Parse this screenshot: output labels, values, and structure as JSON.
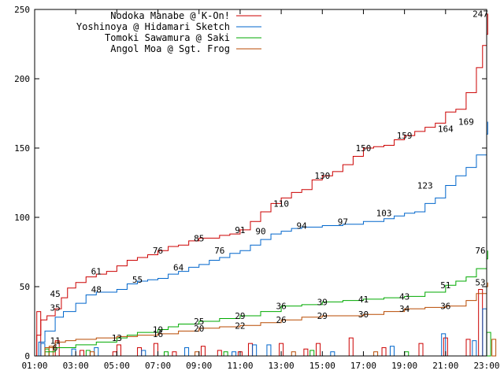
{
  "chart_data": {
    "type": "line",
    "title": "",
    "xlabel": "",
    "ylabel": "",
    "xlim": [
      1,
      23
    ],
    "ylim": [
      0,
      250
    ],
    "yticks": [
      0,
      50,
      100,
      150,
      200,
      250
    ],
    "xticks": [
      {
        "x": 1,
        "label": "01:00"
      },
      {
        "x": 3,
        "label": "03:00"
      },
      {
        "x": 5,
        "label": "05:00"
      },
      {
        "x": 7,
        "label": "07:00"
      },
      {
        "x": 9,
        "label": "09:00"
      },
      {
        "x": 11,
        "label": "11:00"
      },
      {
        "x": 13,
        "label": "13:00"
      },
      {
        "x": 15,
        "label": "15:00"
      },
      {
        "x": 17,
        "label": "17:00"
      },
      {
        "x": 19,
        "label": "19:00"
      },
      {
        "x": 21,
        "label": "21:00"
      },
      {
        "x": 23,
        "label": "23:00"
      }
    ],
    "grid": false,
    "legend_position": "top-left",
    "series": [
      {
        "name": "Nodoka Manabe @ K-On!",
        "color": "#cc0000",
        "points": [
          [
            1,
            0
          ],
          [
            1.1,
            15
          ],
          [
            1.3,
            26
          ],
          [
            1.6,
            29
          ],
          [
            2,
            34
          ],
          [
            2.3,
            42
          ],
          [
            2.6,
            49
          ],
          [
            3,
            53
          ],
          [
            3.5,
            57
          ],
          [
            4,
            59
          ],
          [
            4.5,
            61
          ],
          [
            5,
            65
          ],
          [
            5.5,
            69
          ],
          [
            6,
            71
          ],
          [
            6.5,
            73
          ],
          [
            7,
            76
          ],
          [
            7.5,
            79
          ],
          [
            8,
            80
          ],
          [
            8.5,
            83
          ],
          [
            9,
            85
          ],
          [
            9.5,
            85
          ],
          [
            10,
            87
          ],
          [
            10.5,
            88
          ],
          [
            11,
            91
          ],
          [
            11.5,
            97
          ],
          [
            12,
            104
          ],
          [
            12.5,
            110
          ],
          [
            13,
            114
          ],
          [
            13.5,
            118
          ],
          [
            14,
            120
          ],
          [
            14.5,
            127
          ],
          [
            15,
            130
          ],
          [
            15.5,
            133
          ],
          [
            16,
            138
          ],
          [
            16.5,
            144
          ],
          [
            17,
            150
          ],
          [
            17.5,
            151
          ],
          [
            18,
            152
          ],
          [
            18.5,
            156
          ],
          [
            19,
            159
          ],
          [
            19.5,
            162
          ],
          [
            20,
            165
          ],
          [
            20.5,
            168
          ],
          [
            21,
            176
          ],
          [
            21.5,
            178
          ],
          [
            22,
            190
          ],
          [
            22.5,
            208
          ],
          [
            22.8,
            224
          ],
          [
            23,
            232
          ],
          [
            23.05,
            247
          ]
        ],
        "labels": [
          [
            2,
            45
          ],
          [
            4,
            61
          ],
          [
            7,
            76
          ],
          [
            9,
            85
          ],
          [
            11,
            91
          ],
          [
            13,
            110
          ],
          [
            15,
            130
          ],
          [
            17,
            150
          ],
          [
            19,
            159
          ],
          [
            21,
            164
          ],
          [
            23,
            247
          ]
        ]
      },
      {
        "name": "Yoshinoya @ Hidamari Sketch",
        "color": "#0066cc",
        "points": [
          [
            1,
            0
          ],
          [
            1.2,
            10
          ],
          [
            1.5,
            18
          ],
          [
            2,
            28
          ],
          [
            2.4,
            32
          ],
          [
            3,
            38
          ],
          [
            3.5,
            44
          ],
          [
            4,
            46
          ],
          [
            5,
            48
          ],
          [
            5.5,
            52
          ],
          [
            6,
            54
          ],
          [
            6.5,
            55
          ],
          [
            7,
            56
          ],
          [
            7.5,
            59
          ],
          [
            8,
            61
          ],
          [
            8.5,
            64
          ],
          [
            9,
            66
          ],
          [
            9.5,
            69
          ],
          [
            10,
            71
          ],
          [
            10.5,
            74
          ],
          [
            11,
            76
          ],
          [
            11.5,
            80
          ],
          [
            12,
            84
          ],
          [
            12.5,
            88
          ],
          [
            13,
            90
          ],
          [
            13.5,
            92
          ],
          [
            14,
            93
          ],
          [
            15,
            94
          ],
          [
            16,
            95
          ],
          [
            17,
            97
          ],
          [
            18,
            99
          ],
          [
            18.5,
            101
          ],
          [
            19,
            103
          ],
          [
            19.5,
            104
          ],
          [
            20,
            110
          ],
          [
            20.5,
            114
          ],
          [
            21,
            123
          ],
          [
            21.5,
            130
          ],
          [
            22,
            136
          ],
          [
            22.5,
            145
          ],
          [
            23,
            160
          ],
          [
            23.05,
            169
          ]
        ],
        "labels": [
          [
            2,
            35
          ],
          [
            4,
            48
          ],
          [
            6,
            55
          ],
          [
            8,
            64
          ],
          [
            10,
            76
          ],
          [
            12,
            90
          ],
          [
            14,
            94
          ],
          [
            16,
            97
          ],
          [
            18,
            103
          ],
          [
            20,
            123
          ],
          [
            22,
            169
          ]
        ]
      },
      {
        "name": "Tomoki Sawamura @ Saki",
        "color": "#00aa00",
        "points": [
          [
            1,
            0
          ],
          [
            1.5,
            3
          ],
          [
            2,
            6
          ],
          [
            3,
            8
          ],
          [
            4,
            10
          ],
          [
            5,
            13
          ],
          [
            5.5,
            15
          ],
          [
            6,
            17
          ],
          [
            7,
            19
          ],
          [
            7.5,
            21
          ],
          [
            8,
            23
          ],
          [
            9,
            25
          ],
          [
            10,
            27
          ],
          [
            11,
            29
          ],
          [
            12,
            32
          ],
          [
            13,
            36
          ],
          [
            14,
            37
          ],
          [
            15,
            39
          ],
          [
            16,
            40
          ],
          [
            17,
            41
          ],
          [
            18,
            42
          ],
          [
            19,
            43
          ],
          [
            20,
            46
          ],
          [
            21,
            51
          ],
          [
            21.5,
            54
          ],
          [
            22,
            57
          ],
          [
            22.5,
            63
          ],
          [
            23,
            70
          ],
          [
            23.05,
            76
          ]
        ],
        "labels": [
          [
            2,
            6
          ],
          [
            5,
            13
          ],
          [
            7,
            19
          ],
          [
            9,
            25
          ],
          [
            11,
            29
          ],
          [
            13,
            36
          ],
          [
            15,
            39
          ],
          [
            17,
            41
          ],
          [
            19,
            43
          ],
          [
            21,
            51
          ],
          [
            23,
            76
          ]
        ]
      },
      {
        "name": "Angol Moa @ Sgt. Frog",
        "color": "#b84a00",
        "points": [
          [
            1,
            0
          ],
          [
            1.5,
            6
          ],
          [
            2,
            10
          ],
          [
            2.5,
            11
          ],
          [
            3,
            12
          ],
          [
            4,
            13
          ],
          [
            5,
            14
          ],
          [
            6,
            15
          ],
          [
            7,
            16
          ],
          [
            8,
            18
          ],
          [
            9,
            20
          ],
          [
            10,
            21
          ],
          [
            11,
            22
          ],
          [
            12,
            24
          ],
          [
            13,
            26
          ],
          [
            14,
            28
          ],
          [
            15,
            29
          ],
          [
            16,
            29
          ],
          [
            17,
            30
          ],
          [
            18,
            32
          ],
          [
            19,
            34
          ],
          [
            20,
            35
          ],
          [
            21,
            36
          ],
          [
            22,
            40
          ],
          [
            22.5,
            45
          ],
          [
            23,
            50
          ],
          [
            23.05,
            53
          ]
        ],
        "labels": [
          [
            2,
            11
          ],
          [
            7,
            16
          ],
          [
            9,
            20
          ],
          [
            11,
            22
          ],
          [
            13,
            26
          ],
          [
            15,
            29
          ],
          [
            17,
            30
          ],
          [
            19,
            34
          ],
          [
            21,
            36
          ],
          [
            23,
            53
          ]
        ]
      }
    ],
    "bar_series": {
      "note_colors_match_series": true,
      "bars": [
        {
          "series": 0,
          "x": 1.2,
          "value": 32
        },
        {
          "series": 0,
          "x": 2.1,
          "value": 11
        },
        {
          "series": 0,
          "x": 3.3,
          "value": 4
        },
        {
          "series": 0,
          "x": 4.9,
          "value": 3
        },
        {
          "series": 0,
          "x": 5.1,
          "value": 8
        },
        {
          "series": 0,
          "x": 6.1,
          "value": 6
        },
        {
          "series": 0,
          "x": 6.9,
          "value": 9
        },
        {
          "series": 0,
          "x": 7.8,
          "value": 3
        },
        {
          "series": 0,
          "x": 9.2,
          "value": 7
        },
        {
          "series": 0,
          "x": 10.0,
          "value": 4
        },
        {
          "series": 0,
          "x": 11.0,
          "value": 3
        },
        {
          "series": 0,
          "x": 11.5,
          "value": 9
        },
        {
          "series": 0,
          "x": 13.0,
          "value": 9
        },
        {
          "series": 0,
          "x": 14.2,
          "value": 5
        },
        {
          "series": 0,
          "x": 14.8,
          "value": 9
        },
        {
          "series": 0,
          "x": 16.4,
          "value": 13
        },
        {
          "series": 0,
          "x": 18.0,
          "value": 6
        },
        {
          "series": 0,
          "x": 19.8,
          "value": 9
        },
        {
          "series": 0,
          "x": 21.0,
          "value": 13
        },
        {
          "series": 0,
          "x": 22.1,
          "value": 12
        },
        {
          "series": 0,
          "x": 22.7,
          "value": 48
        },
        {
          "series": 1,
          "x": 1.4,
          "value": 9
        },
        {
          "series": 1,
          "x": 2.9,
          "value": 5
        },
        {
          "series": 1,
          "x": 4.0,
          "value": 6
        },
        {
          "series": 1,
          "x": 6.3,
          "value": 4
        },
        {
          "series": 1,
          "x": 8.4,
          "value": 6
        },
        {
          "series": 1,
          "x": 10.7,
          "value": 3
        },
        {
          "series": 1,
          "x": 11.7,
          "value": 8
        },
        {
          "series": 1,
          "x": 12.4,
          "value": 8
        },
        {
          "series": 1,
          "x": 15.5,
          "value": 3
        },
        {
          "series": 1,
          "x": 18.4,
          "value": 7
        },
        {
          "series": 1,
          "x": 20.9,
          "value": 16
        },
        {
          "series": 1,
          "x": 22.4,
          "value": 11
        },
        {
          "series": 1,
          "x": 22.9,
          "value": 34
        },
        {
          "series": 2,
          "x": 1.6,
          "value": 5
        },
        {
          "series": 2,
          "x": 3.6,
          "value": 4
        },
        {
          "series": 2,
          "x": 7.4,
          "value": 3
        },
        {
          "series": 2,
          "x": 10.3,
          "value": 3
        },
        {
          "series": 2,
          "x": 14.5,
          "value": 4
        },
        {
          "series": 2,
          "x": 19.1,
          "value": 3
        },
        {
          "series": 2,
          "x": 23.1,
          "value": 17
        },
        {
          "series": 3,
          "x": 1.8,
          "value": 7
        },
        {
          "series": 3,
          "x": 3.8,
          "value": 3
        },
        {
          "series": 3,
          "x": 8.9,
          "value": 3
        },
        {
          "series": 3,
          "x": 13.6,
          "value": 3
        },
        {
          "series": 3,
          "x": 17.6,
          "value": 3
        },
        {
          "series": 3,
          "x": 23.35,
          "value": 12
        }
      ]
    }
  }
}
